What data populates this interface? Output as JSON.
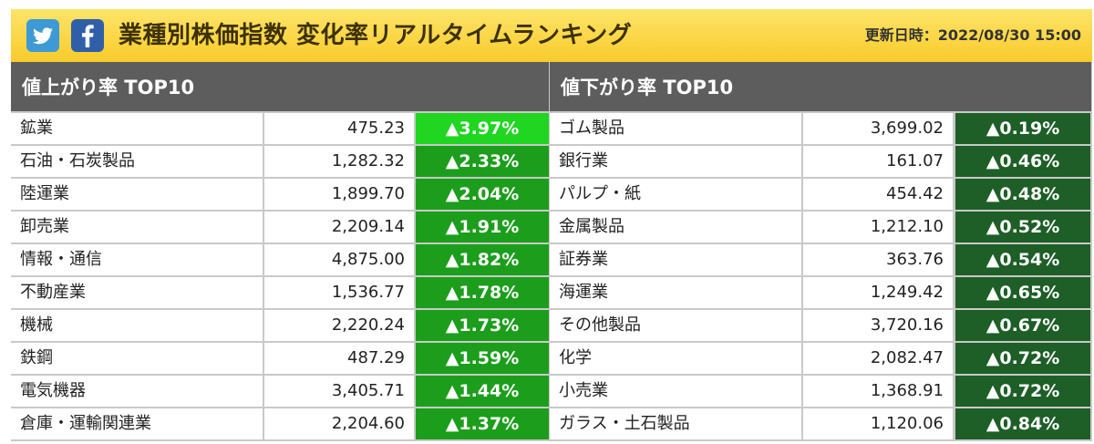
{
  "header": {
    "twitter_icon": "twitter-bird-icon",
    "facebook_icon": "facebook-f-icon",
    "title": "業種別株価指数 変化率リアルタイムランキング",
    "updated": "更新日時：2022/08/30 15:00"
  },
  "colors": {
    "header_bg": "#f9d23a",
    "panel_header_bg": "#5d5d5d",
    "gain_top": "#20d620",
    "gain": "#1c9e1c",
    "loss_side": "#1e5e27"
  },
  "up": {
    "heading": "値上がり率 TOP10",
    "rows": [
      {
        "name": "鉱業",
        "value": "475.23",
        "change": "▲3.97%"
      },
      {
        "name": "石油・石炭製品",
        "value": "1,282.32",
        "change": "▲2.33%"
      },
      {
        "name": "陸運業",
        "value": "1,899.70",
        "change": "▲2.04%"
      },
      {
        "name": "卸売業",
        "value": "2,209.14",
        "change": "▲1.91%"
      },
      {
        "name": "情報・通信",
        "value": "4,875.00",
        "change": "▲1.82%"
      },
      {
        "name": "不動産業",
        "value": "1,536.77",
        "change": "▲1.78%"
      },
      {
        "name": "機械",
        "value": "2,220.24",
        "change": "▲1.73%"
      },
      {
        "name": "鉄鋼",
        "value": "487.29",
        "change": "▲1.59%"
      },
      {
        "name": "電気機器",
        "value": "3,405.71",
        "change": "▲1.44%"
      },
      {
        "name": "倉庫・運輸関連業",
        "value": "2,204.60",
        "change": "▲1.37%"
      }
    ]
  },
  "down": {
    "heading": "値下がり率 TOP10",
    "rows": [
      {
        "name": "ゴム製品",
        "value": "3,699.02",
        "change": "▲0.19%"
      },
      {
        "name": "銀行業",
        "value": "161.07",
        "change": "▲0.46%"
      },
      {
        "name": "パルプ・紙",
        "value": "454.42",
        "change": "▲0.48%"
      },
      {
        "name": "金属製品",
        "value": "1,212.10",
        "change": "▲0.52%"
      },
      {
        "name": "証券業",
        "value": "363.76",
        "change": "▲0.54%"
      },
      {
        "name": "海運業",
        "value": "1,249.42",
        "change": "▲0.65%"
      },
      {
        "name": "その他製品",
        "value": "3,720.16",
        "change": "▲0.67%"
      },
      {
        "name": "化学",
        "value": "2,082.47",
        "change": "▲0.72%"
      },
      {
        "name": "小売業",
        "value": "1,368.91",
        "change": "▲0.72%"
      },
      {
        "name": "ガラス・土石製品",
        "value": "1,120.06",
        "change": "▲0.84%"
      }
    ]
  }
}
